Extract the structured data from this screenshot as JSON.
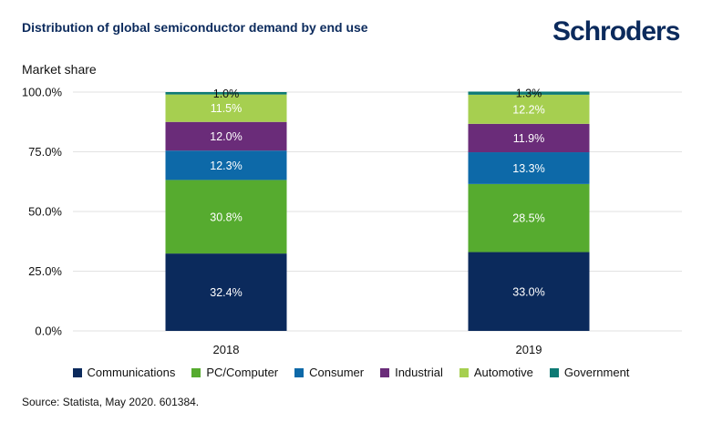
{
  "header": {
    "title": "Distribution of global semiconductor demand by end use",
    "logo_text": "Schroders"
  },
  "footer": {
    "source": "Source: Statista, May 2020. 601384."
  },
  "chart_data": {
    "type": "bar",
    "stacked": true,
    "title": "Distribution of global semiconductor demand by end use",
    "ylabel": "Market share",
    "ylim": [
      0,
      100
    ],
    "y_ticks": [
      "0.0%",
      "25.0%",
      "50.0%",
      "75.0%",
      "100.0%"
    ],
    "y_tick_values": [
      0,
      25,
      50,
      75,
      100
    ],
    "categories": [
      "2018",
      "2019"
    ],
    "legend_position": "bottom",
    "grid": true,
    "series": [
      {
        "name": "Communications",
        "color": "#0b2a5c",
        "label_color": "#ffffff",
        "values": [
          32.4,
          33.0
        ],
        "labels": [
          "32.4%",
          "33.0%"
        ]
      },
      {
        "name": "PC/Computer",
        "color": "#56ab2f",
        "label_color": "#ffffff",
        "values": [
          30.8,
          28.5
        ],
        "labels": [
          "30.8%",
          "28.5%"
        ]
      },
      {
        "name": "Consumer",
        "color": "#0d69a8",
        "label_color": "#ffffff",
        "values": [
          12.3,
          13.3
        ],
        "labels": [
          "12.3%",
          "13.3%"
        ]
      },
      {
        "name": "Industrial",
        "color": "#6a2c79",
        "label_color": "#ffffff",
        "values": [
          12.0,
          11.9
        ],
        "labels": [
          "12.0%",
          "11.9%"
        ]
      },
      {
        "name": "Automotive",
        "color": "#a6cf50",
        "label_color": "#ffffff",
        "values": [
          11.5,
          12.2
        ],
        "labels": [
          "11.5%",
          "12.2%"
        ]
      },
      {
        "name": "Government",
        "color": "#0e7a74",
        "label_color": "#111111",
        "values": [
          1.0,
          1.3
        ],
        "labels": [
          "1.0%",
          "1.3%"
        ]
      }
    ]
  }
}
